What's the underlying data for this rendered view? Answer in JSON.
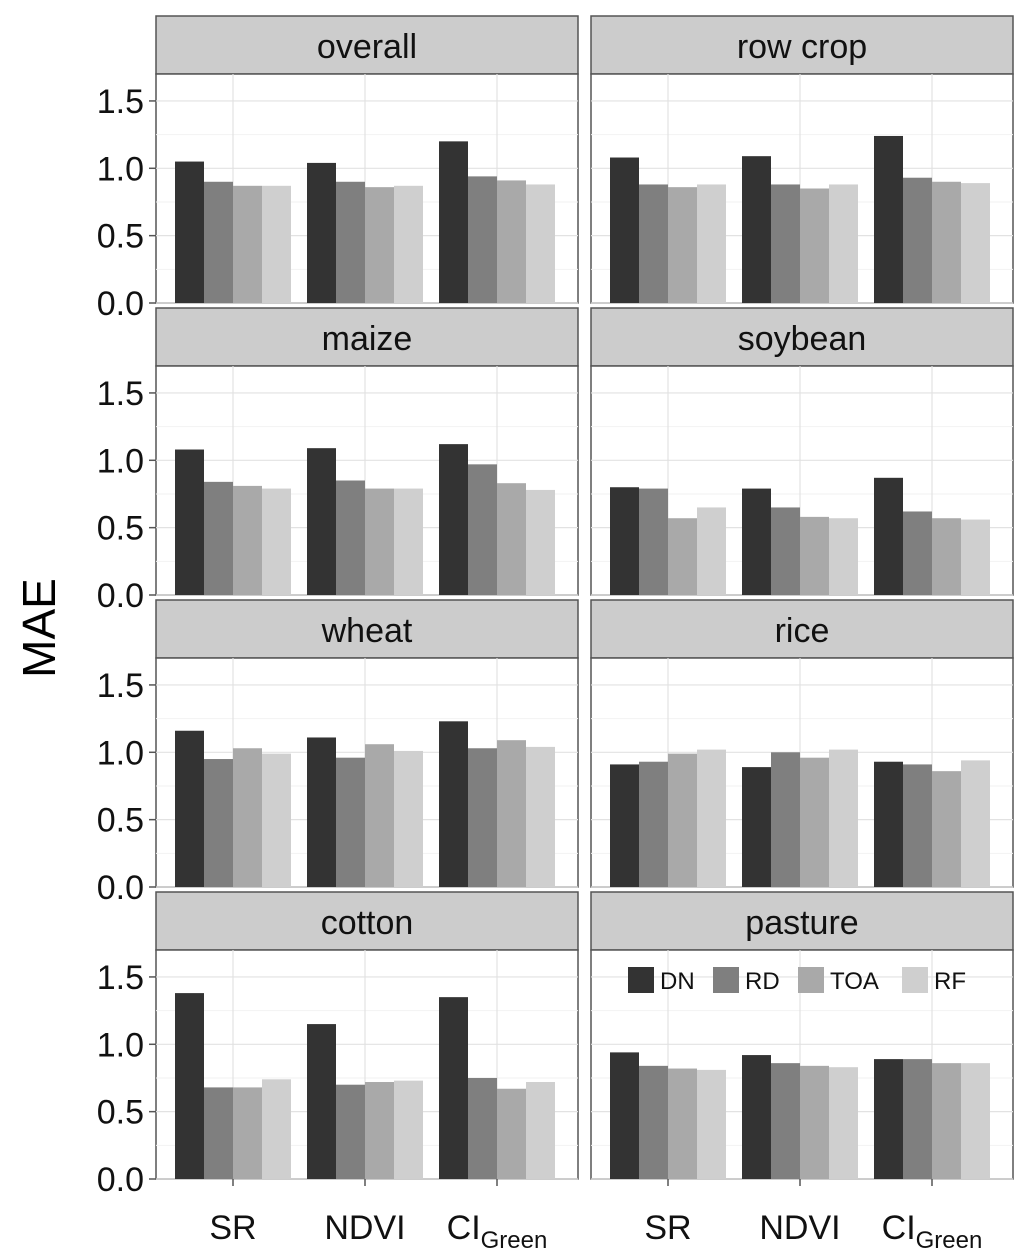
{
  "chart_data": {
    "type": "bar",
    "ylabel": "MAE",
    "xlabel": "",
    "ylim": [
      0,
      1.7
    ],
    "yticks": [
      "0.0",
      "0.5",
      "1.0",
      "1.5"
    ],
    "ytick_values": [
      0,
      0.5,
      1.0,
      1.5
    ],
    "grid": true,
    "legend_placement": "top-right of pasture panel",
    "categories": [
      {
        "main": "SR",
        "sub": ""
      },
      {
        "main": "NDVI",
        "sub": ""
      },
      {
        "main": "CI",
        "sub": "Green"
      }
    ],
    "series_names": [
      "DN",
      "RD",
      "TOA",
      "RF"
    ],
    "series_colors": [
      "#333333",
      "#7f7f7f",
      "#a9a9a9",
      "#cfcfcf"
    ],
    "panels": [
      {
        "title": "overall",
        "values": [
          [
            1.05,
            0.9,
            0.87,
            0.87
          ],
          [
            1.04,
            0.9,
            0.86,
            0.87
          ],
          [
            1.2,
            0.94,
            0.91,
            0.88
          ]
        ]
      },
      {
        "title": "row crop",
        "values": [
          [
            1.08,
            0.88,
            0.86,
            0.88
          ],
          [
            1.09,
            0.88,
            0.85,
            0.88
          ],
          [
            1.24,
            0.93,
            0.9,
            0.89
          ]
        ]
      },
      {
        "title": "maize",
        "values": [
          [
            1.08,
            0.84,
            0.81,
            0.79
          ],
          [
            1.09,
            0.85,
            0.79,
            0.79
          ],
          [
            1.12,
            0.97,
            0.83,
            0.78
          ]
        ]
      },
      {
        "title": "soybean",
        "values": [
          [
            0.8,
            0.79,
            0.57,
            0.65
          ],
          [
            0.79,
            0.65,
            0.58,
            0.57
          ],
          [
            0.87,
            0.62,
            0.57,
            0.56
          ]
        ]
      },
      {
        "title": "wheat",
        "values": [
          [
            1.16,
            0.95,
            1.03,
            0.99
          ],
          [
            1.11,
            0.96,
            1.06,
            1.01
          ],
          [
            1.23,
            1.03,
            1.09,
            1.04
          ]
        ]
      },
      {
        "title": "rice",
        "values": [
          [
            0.91,
            0.93,
            0.99,
            1.02
          ],
          [
            0.89,
            1.0,
            0.96,
            1.02
          ],
          [
            0.93,
            0.91,
            0.86,
            0.94
          ]
        ]
      },
      {
        "title": "cotton",
        "values": [
          [
            1.38,
            0.68,
            0.68,
            0.74
          ],
          [
            1.15,
            0.7,
            0.72,
            0.73
          ],
          [
            1.35,
            0.75,
            0.67,
            0.72
          ]
        ]
      },
      {
        "title": "pasture",
        "values": [
          [
            0.94,
            0.84,
            0.82,
            0.81
          ],
          [
            0.92,
            0.86,
            0.84,
            0.83
          ],
          [
            0.89,
            0.89,
            0.86,
            0.86
          ]
        ]
      }
    ]
  }
}
